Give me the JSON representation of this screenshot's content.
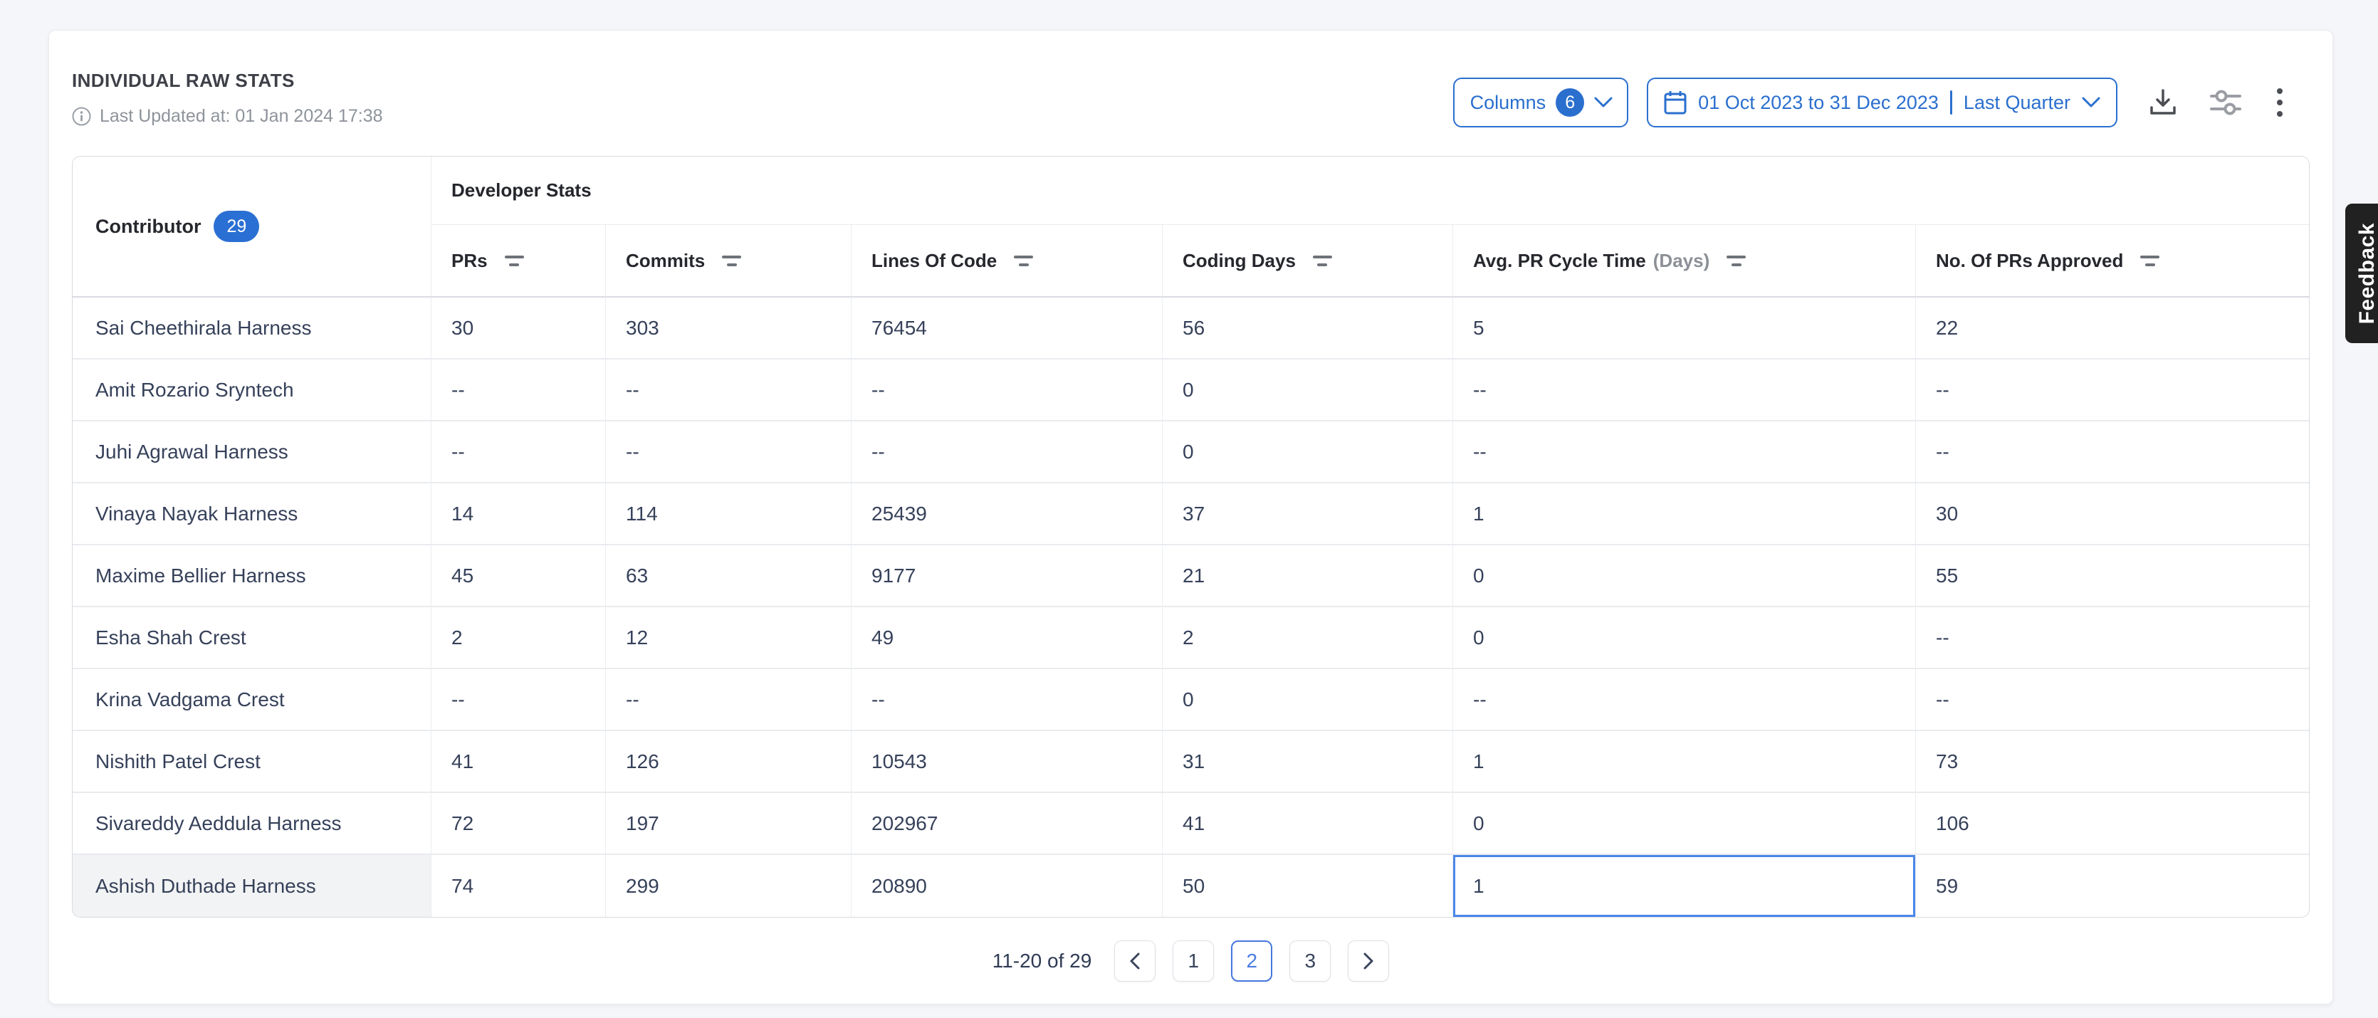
{
  "colors": {
    "accent_blue": "#2A6FCE",
    "badge_blue": "#2A6FD3",
    "selected_cell_border": "#4A86E8",
    "pagination_active_blue": "#4B7CE4",
    "page_background": "#F5F6F9",
    "feedback_tab_background": "#212121"
  },
  "header": {
    "title": "INDIVIDUAL RAW STATS",
    "last_updated": "Last Updated at: 01 Jan 2024 17:38",
    "columns_button": {
      "label": "Columns",
      "count": "6"
    },
    "date_filter": {
      "range": "01 Oct 2023 to 31 Dec 2023",
      "preset": "Last Quarter"
    },
    "toolbar_icons": [
      "download-icon",
      "filter-settings-icon",
      "more-options-icon"
    ]
  },
  "table": {
    "group_header": "Developer Stats",
    "contributor_header": {
      "label": "Contributor",
      "count": "29"
    },
    "columns": [
      {
        "label": "PRs"
      },
      {
        "label": "Commits"
      },
      {
        "label": "Lines Of Code"
      },
      {
        "label": "Coding Days"
      },
      {
        "label": "Avg. PR Cycle Time",
        "suffix": "(Days)"
      },
      {
        "label": "No. Of PRs Approved"
      }
    ],
    "rows": [
      {
        "name": "Sai Cheethirala Harness",
        "values": [
          "30",
          "303",
          "76454",
          "56",
          "5",
          "22"
        ]
      },
      {
        "name": "Amit Rozario Sryntech",
        "values": [
          "--",
          "--",
          "--",
          "0",
          "--",
          "--"
        ]
      },
      {
        "name": "Juhi Agrawal Harness",
        "values": [
          "--",
          "--",
          "--",
          "0",
          "--",
          "--"
        ]
      },
      {
        "name": "Vinaya Nayak Harness",
        "values": [
          "14",
          "114",
          "25439",
          "37",
          "1",
          "30"
        ]
      },
      {
        "name": "Maxime Bellier Harness",
        "values": [
          "45",
          "63",
          "9177",
          "21",
          "0",
          "55"
        ]
      },
      {
        "name": "Esha Shah Crest",
        "values": [
          "2",
          "12",
          "49",
          "2",
          "0",
          "--"
        ]
      },
      {
        "name": "Krina Vadgama Crest",
        "values": [
          "--",
          "--",
          "--",
          "0",
          "--",
          "--"
        ]
      },
      {
        "name": "Nishith Patel Crest",
        "values": [
          "41",
          "126",
          "10543",
          "31",
          "1",
          "73"
        ]
      },
      {
        "name": "Sivareddy Aeddula Harness",
        "values": [
          "72",
          "197",
          "202967",
          "41",
          "0",
          "106"
        ]
      },
      {
        "name": "Ashish Duthade Harness",
        "values": [
          "74",
          "299",
          "20890",
          "50",
          "1",
          "59"
        ]
      }
    ],
    "state": {
      "selected_row": 9,
      "selected_col": 4,
      "highlighted_row": 9
    }
  },
  "pagination": {
    "summary": "11-20 of 29",
    "pages": [
      "1",
      "2",
      "3"
    ],
    "active_page": "2",
    "prev_icon": "chevron-left-icon",
    "next_icon": "chevron-right-icon"
  },
  "feedback": {
    "label": "Feedback"
  }
}
